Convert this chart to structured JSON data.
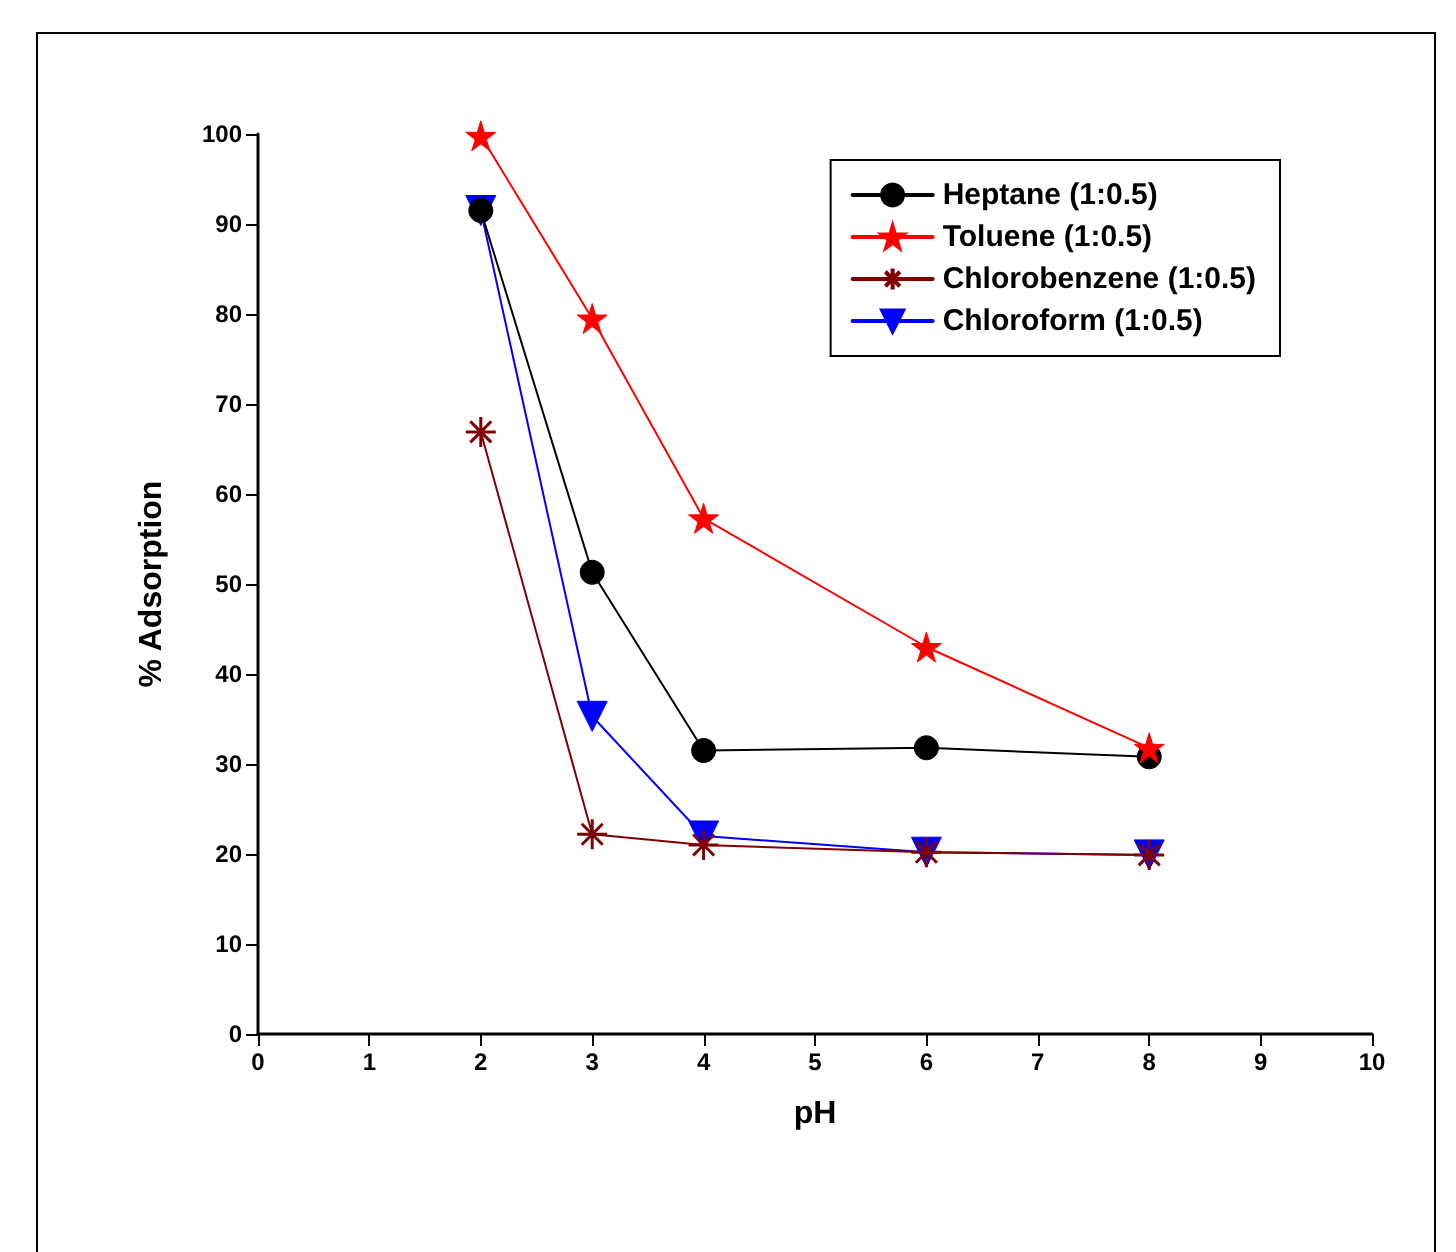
{
  "chart_data": {
    "type": "line",
    "xlabel": "pH",
    "ylabel": "% Adsorption",
    "xlim": [
      0,
      10
    ],
    "xticks": [
      0,
      1,
      2,
      3,
      4,
      5,
      6,
      7,
      8,
      9,
      10
    ],
    "ylim": [
      0,
      100
    ],
    "yticks": [
      0,
      10,
      20,
      30,
      40,
      50,
      60,
      70,
      80,
      90,
      100
    ],
    "grid": false,
    "legend": "top right",
    "line_style": "solid",
    "series": [
      {
        "name": "Heptane (1:0.5)",
        "color": "#000000",
        "marker": "circle",
        "x": [
          2,
          3,
          4,
          6,
          8
        ],
        "values": [
          91.5,
          51.3,
          31.5,
          31.8,
          30.8
        ]
      },
      {
        "name": "Toluene (1:0.5)",
        "color": "#ff0000",
        "marker": "star",
        "x": [
          2,
          3,
          4,
          6,
          8
        ],
        "values": [
          99.8,
          79.5,
          57.3,
          43,
          31.8
        ]
      },
      {
        "name": "Chlorobenzene (1:0.5)",
        "color": "#800000",
        "marker": "cross",
        "x": [
          2,
          3,
          4,
          6,
          8
        ],
        "values": [
          66.9,
          22.2,
          21,
          20.2,
          19.9
        ]
      },
      {
        "name": "Chloroform (1:0.5)",
        "color": "#0000ff",
        "marker": "triangle",
        "x": [
          2,
          3,
          4,
          6,
          8
        ],
        "values": [
          91.5,
          35.3,
          22,
          20.2,
          19.9
        ]
      }
    ]
  }
}
